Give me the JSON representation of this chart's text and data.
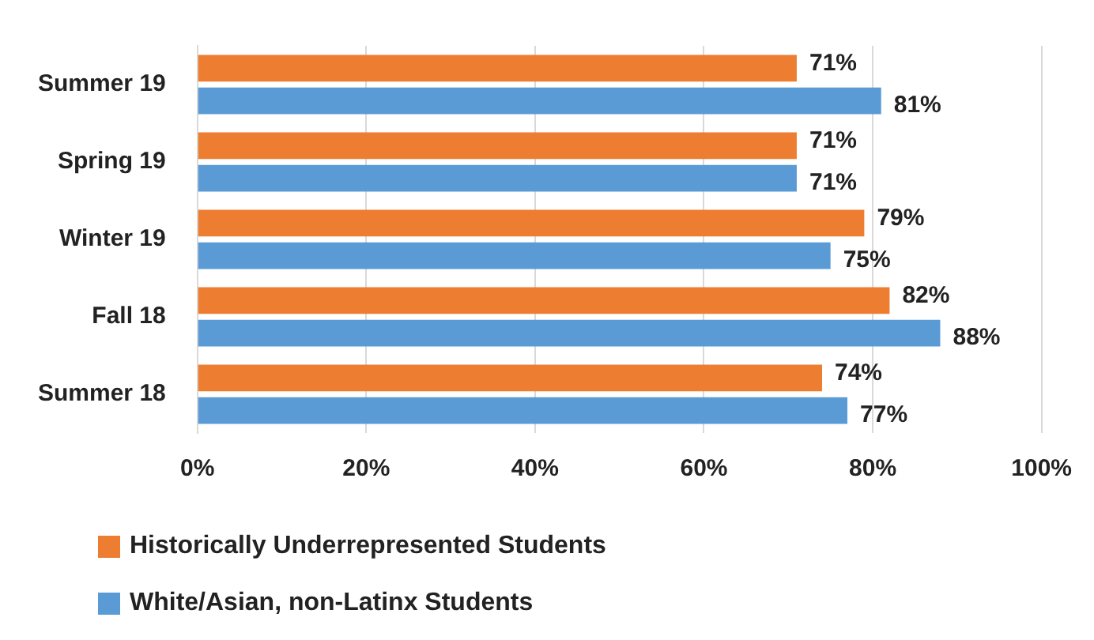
{
  "chart_data": {
    "type": "bar",
    "orientation": "horizontal",
    "categories": [
      "Summer 19",
      "Spring 19",
      "Winter 19",
      "Fall 18",
      "Summer 18"
    ],
    "series": [
      {
        "name": "Historically Underrepresented Students",
        "color": "#ed7d31",
        "values": [
          71,
          71,
          79,
          82,
          74
        ],
        "value_labels": [
          "71%",
          "71%",
          "79%",
          "82%",
          "74%"
        ]
      },
      {
        "name": "White/Asian, non-Latinx Students",
        "color": "#5b9bd5",
        "values": [
          81,
          71,
          75,
          88,
          77
        ],
        "value_labels": [
          "81%",
          "71%",
          "75%",
          "88%",
          "77%"
        ]
      }
    ],
    "xlim": [
      0,
      100
    ],
    "xticks": [
      {
        "value": 0,
        "label": "0%"
      },
      {
        "value": 20,
        "label": "20%"
      },
      {
        "value": 40,
        "label": "40%"
      },
      {
        "value": 60,
        "label": "60%"
      },
      {
        "value": 80,
        "label": "80%"
      },
      {
        "value": 100,
        "label": "100%"
      }
    ],
    "grid": "x",
    "legend": "bottom"
  }
}
